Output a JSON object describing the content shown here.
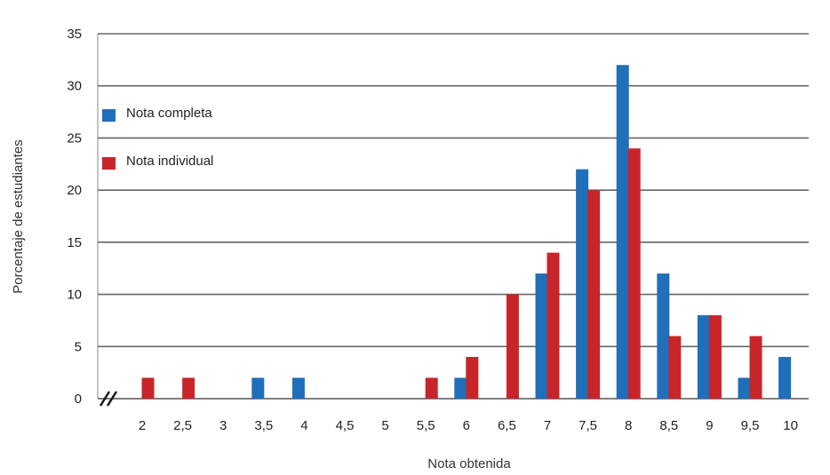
{
  "chart_data": {
    "type": "bar",
    "xlabel": "Nota obtenida",
    "ylabel": "Porcentaje de estudiantes",
    "ylim": [
      0,
      35
    ],
    "yticks": [
      0,
      5,
      10,
      15,
      20,
      25,
      30,
      35
    ],
    "grid": true,
    "axis_break": "//",
    "legend_position": "top-left",
    "categories": [
      "2",
      "2,5",
      "3",
      "3,5",
      "4",
      "4,5",
      "5",
      "5,5",
      "6",
      "6,5",
      "7",
      "7,5",
      "8",
      "8,5",
      "9",
      "9,5",
      "10"
    ],
    "series": [
      {
        "name": "Nota completa",
        "color": "#1f6fba",
        "values": [
          0,
          0,
          0,
          2,
          2,
          0,
          0,
          0,
          2,
          0,
          12,
          22,
          32,
          12,
          8,
          2,
          4
        ]
      },
      {
        "name": "Nota individual",
        "color": "#c8252b",
        "values": [
          2,
          2,
          0,
          0,
          0,
          0,
          0,
          2,
          4,
          10,
          14,
          20,
          24,
          6,
          8,
          6,
          0
        ]
      }
    ]
  }
}
